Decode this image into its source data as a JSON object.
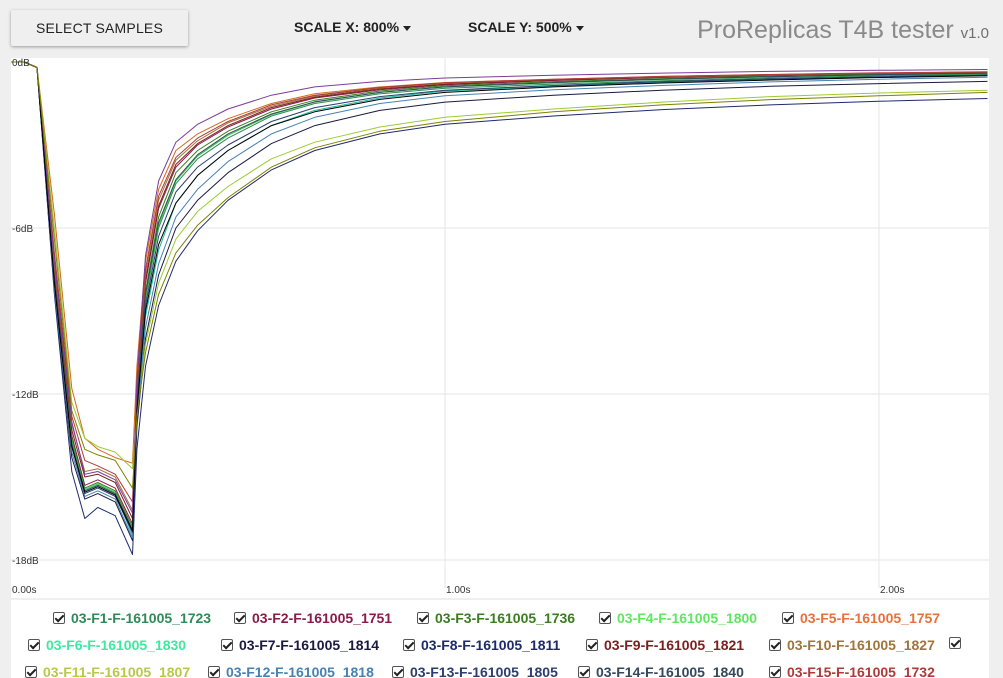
{
  "toolbar": {
    "select_samples_label": "SELECT SAMPLES",
    "scale_x_label": "SCALE X: 800%",
    "scale_y_label": "SCALE Y: 500%"
  },
  "app": {
    "title": "ProReplicas T4B tester",
    "version": "v1.0"
  },
  "chart_data": {
    "type": "line",
    "title": "",
    "xlabel": "",
    "ylabel": "",
    "xlim": [
      0,
      2.25
    ],
    "ylim": [
      -18,
      0
    ],
    "x_ticks": [
      {
        "value": 0,
        "label": "0.00s"
      },
      {
        "value": 1,
        "label": "1.00s"
      },
      {
        "value": 2,
        "label": "2.00s"
      }
    ],
    "y_ticks": [
      {
        "value": 0,
        "label": "0dB"
      },
      {
        "value": -6,
        "label": "-6dB"
      },
      {
        "value": -12,
        "label": "-12dB"
      },
      {
        "value": -18,
        "label": "-18dB"
      }
    ],
    "grid": true,
    "x": [
      0,
      0.03,
      0.06,
      0.1,
      0.14,
      0.17,
      0.2,
      0.24,
      0.28,
      0.29,
      0.31,
      0.34,
      0.38,
      0.43,
      0.5,
      0.6,
      0.7,
      0.85,
      1.0,
      1.25,
      1.5,
      1.75,
      2.0,
      2.25
    ],
    "series": [
      {
        "name": "03-F1-F-161005_1723",
        "color": "#2e8b57",
        "values": [
          0,
          0,
          -0.2,
          -8.0,
          -13.8,
          -15.5,
          -15.3,
          -15.6,
          -17.0,
          -12.5,
          -8.6,
          -6.0,
          -4.4,
          -3.5,
          -2.75,
          -1.95,
          -1.5,
          -1.15,
          -0.95,
          -0.8,
          -0.68,
          -0.58,
          -0.5,
          -0.45
        ]
      },
      {
        "name": "03-F2-F-161005_1751",
        "color": "#8b1a4a",
        "values": [
          0,
          0,
          -0.2,
          -7.7,
          -13.5,
          -15.3,
          -15.1,
          -15.4,
          -16.7,
          -12.2,
          -8.0,
          -5.3,
          -3.8,
          -3.0,
          -2.35,
          -1.7,
          -1.3,
          -1.0,
          -0.82,
          -0.67,
          -0.56,
          -0.48,
          -0.42,
          -0.38
        ]
      },
      {
        "name": "03-F3-F-161005_1736",
        "color": "#3a7d20",
        "values": [
          0,
          0,
          -0.2,
          -7.8,
          -13.6,
          -15.4,
          -15.2,
          -15.5,
          -16.8,
          -12.3,
          -8.3,
          -5.6,
          -4.0,
          -3.2,
          -2.5,
          -1.8,
          -1.38,
          -1.05,
          -0.86,
          -0.71,
          -0.6,
          -0.51,
          -0.44,
          -0.4
        ]
      },
      {
        "name": "03-F4-F-161005_1800",
        "color": "#2ecc40",
        "values": [
          0,
          0,
          -0.2,
          -7.9,
          -13.7,
          -15.45,
          -15.25,
          -15.55,
          -16.9,
          -12.4,
          -8.5,
          -5.9,
          -4.3,
          -3.4,
          -2.65,
          -1.9,
          -1.45,
          -1.1,
          -0.9,
          -0.75,
          -0.63,
          -0.54,
          -0.47,
          -0.42
        ]
      },
      {
        "name": "03-F5-F-161005_1757",
        "color": "#d2691e",
        "values": [
          0,
          0,
          -0.2,
          -5.5,
          -11.8,
          -13.6,
          -14.0,
          -14.3,
          -14.5,
          -11.0,
          -7.2,
          -4.6,
          -3.2,
          -2.6,
          -2.05,
          -1.5,
          -1.15,
          -0.9,
          -0.74,
          -0.62,
          -0.52,
          -0.45,
          -0.4,
          -0.36
        ]
      },
      {
        "name": "03-F6-F-161005_1830",
        "color": "#1abc9c",
        "values": [
          0,
          0,
          -0.2,
          -8.1,
          -13.9,
          -15.5,
          -15.3,
          -15.6,
          -17.1,
          -12.7,
          -9.2,
          -6.8,
          -5.1,
          -4.1,
          -3.2,
          -2.3,
          -1.75,
          -1.3,
          -1.05,
          -0.87,
          -0.73,
          -0.62,
          -0.54,
          -0.48
        ]
      },
      {
        "name": "03-F7-F-161005_1814",
        "color": "#1a1a40",
        "values": [
          0,
          0,
          -0.2,
          -8.3,
          -14.3,
          -15.8,
          -15.6,
          -15.9,
          -17.3,
          -13.2,
          -10.0,
          -7.7,
          -6.0,
          -5.0,
          -4.0,
          -2.95,
          -2.3,
          -1.75,
          -1.45,
          -1.2,
          -1.02,
          -0.88,
          -0.78,
          -0.7
        ]
      },
      {
        "name": "03-F8-F-161005_1811",
        "color": "#1f2a6b",
        "values": [
          0,
          0,
          -0.2,
          -8.4,
          -14.8,
          -16.5,
          -16.1,
          -16.4,
          -17.8,
          -14.0,
          -11.0,
          -8.8,
          -7.2,
          -6.1,
          -5.0,
          -3.9,
          -3.2,
          -2.6,
          -2.25,
          -1.95,
          -1.72,
          -1.55,
          -1.42,
          -1.32
        ]
      },
      {
        "name": "03-F9-F-161005_1821",
        "color": "#7a2020",
        "values": [
          0,
          0,
          -0.2,
          -7.6,
          -13.3,
          -15.0,
          -14.9,
          -15.2,
          -16.5,
          -12.0,
          -7.9,
          -5.2,
          -3.7,
          -2.95,
          -2.3,
          -1.65,
          -1.27,
          -0.97,
          -0.8,
          -0.65,
          -0.55,
          -0.47,
          -0.41,
          -0.37
        ]
      },
      {
        "name": "03-F10-F-161005_1827",
        "color": "#a0753a",
        "values": [
          0,
          0,
          -0.2,
          -7.4,
          -13.1,
          -14.8,
          -14.7,
          -15.0,
          -16.2,
          -11.8,
          -7.7,
          -5.0,
          -3.55,
          -2.85,
          -2.2,
          -1.6,
          -1.23,
          -0.94,
          -0.77,
          -0.63,
          -0.53,
          -0.46,
          -0.4,
          -0.36
        ]
      },
      {
        "name": "03-F11-F-161005_1807",
        "color": "#9acd32",
        "values": [
          0,
          0,
          -0.2,
          -6.0,
          -12.3,
          -13.6,
          -13.9,
          -14.1,
          -14.7,
          -12.6,
          -10.2,
          -8.0,
          -6.4,
          -5.4,
          -4.5,
          -3.5,
          -2.9,
          -2.35,
          -2.0,
          -1.7,
          -1.45,
          -1.25,
          -1.12,
          -1.02
        ]
      },
      {
        "name": "03-F12-F-161005_1818",
        "color": "#4682b4",
        "values": [
          0,
          0,
          -0.2,
          -8.2,
          -14.1,
          -15.7,
          -15.5,
          -15.8,
          -17.2,
          -12.9,
          -9.6,
          -7.3,
          -5.6,
          -4.6,
          -3.6,
          -2.6,
          -2.0,
          -1.5,
          -1.22,
          -1.0,
          -0.85,
          -0.72,
          -0.62,
          -0.55
        ]
      },
      {
        "name": "03-F13-F-161005_1805",
        "color": "#2c3e70",
        "values": [
          0,
          0,
          -0.2,
          -8.0,
          -13.9,
          -15.6,
          -15.4,
          -15.7,
          -17.0,
          -12.5,
          -8.8,
          -6.3,
          -4.7,
          -3.8,
          -3.0,
          -2.15,
          -1.65,
          -1.25,
          -1.02,
          -0.85,
          -0.71,
          -0.61,
          -0.53,
          -0.47
        ]
      },
      {
        "name": "03-F14-F-161005_1840",
        "color": "#34495e",
        "values": [
          0,
          0,
          -0.2,
          -7.9,
          -13.8,
          -15.5,
          -15.3,
          -15.6,
          -16.9,
          -12.3,
          -8.4,
          -5.8,
          -4.25,
          -3.35,
          -2.6,
          -1.88,
          -1.44,
          -1.1,
          -0.9,
          -0.74,
          -0.62,
          -0.53,
          -0.46,
          -0.41
        ]
      },
      {
        "name": "03-F15-F-161005_1732",
        "color": "#b03a3a",
        "values": [
          0,
          0,
          -0.2,
          -6.9,
          -12.8,
          -14.4,
          -14.6,
          -14.9,
          -15.9,
          -11.7,
          -7.5,
          -4.85,
          -3.45,
          -2.75,
          -2.15,
          -1.55,
          -1.2,
          -0.92,
          -0.75,
          -0.62,
          -0.52,
          -0.45,
          -0.39,
          -0.35
        ]
      },
      {
        "name": "",
        "color": "#7d3c98",
        "values": [
          0,
          0,
          -0.2,
          -7.2,
          -13.0,
          -14.9,
          -14.8,
          -15.1,
          -16.3,
          -11.5,
          -7.0,
          -4.3,
          -2.9,
          -2.25,
          -1.7,
          -1.2,
          -0.9,
          -0.7,
          -0.58,
          -0.48,
          -0.4,
          -0.34,
          -0.3,
          -0.27
        ]
      },
      {
        "name": "",
        "color": "#000000",
        "values": [
          0,
          0,
          -0.2,
          -8.0,
          -13.9,
          -15.55,
          -15.35,
          -15.65,
          -16.95,
          -12.6,
          -9.0,
          -6.6,
          -5.1,
          -4.1,
          -3.2,
          -2.3,
          -1.8,
          -1.35,
          -1.1,
          -0.9,
          -0.76,
          -0.65,
          -0.56,
          -0.5
        ]
      },
      {
        "name": "",
        "color": "#808000",
        "values": [
          0,
          0,
          -0.2,
          -6.4,
          -12.6,
          -14.0,
          -14.2,
          -14.4,
          -15.4,
          -12.8,
          -10.5,
          -8.4,
          -6.9,
          -5.9,
          -4.9,
          -3.8,
          -3.1,
          -2.5,
          -2.15,
          -1.8,
          -1.55,
          -1.36,
          -1.22,
          -1.1
        ]
      }
    ]
  },
  "legend": {
    "rows": [
      [
        {
          "label": "03-F1-F-161005_1723",
          "color": "#2e8b57"
        },
        {
          "label": "03-F2-F-161005_1751",
          "color": "#8b1a4a"
        },
        {
          "label": "03-F3-F-161005_1736",
          "color": "#3a7d20"
        },
        {
          "label": "03-F4-F-161005_1800",
          "color": "#5ee860"
        },
        {
          "label": "03-F5-F-161005_1757",
          "color": "#e8703a"
        }
      ],
      [
        {
          "label": "03-F6-F-161005_1830",
          "color": "#3ee8a0"
        },
        {
          "label": "03-F7-F-161005_1814",
          "color": "#1a1a40"
        },
        {
          "label": "03-F8-F-161005_1811",
          "color": "#1f2a6b"
        },
        {
          "label": "03-F9-F-161005_1821",
          "color": "#7a2020"
        },
        {
          "label": "03-F10-F-161005_1827",
          "color": "#a0753a"
        },
        {
          "label": "",
          "color": "#222222"
        }
      ],
      [
        {
          "label": "03-F11-F-161005_1807",
          "color": "#b8c94a"
        },
        {
          "label": "03-F12-F-161005_1818",
          "color": "#4682b4"
        },
        {
          "label": "03-F13-F-161005_1805",
          "color": "#2c3e70"
        },
        {
          "label": "03-F14-F-161005_1840",
          "color": "#34495e"
        },
        {
          "label": "03-F15-F-161005_1732",
          "color": "#b03a3a"
        }
      ]
    ]
  }
}
